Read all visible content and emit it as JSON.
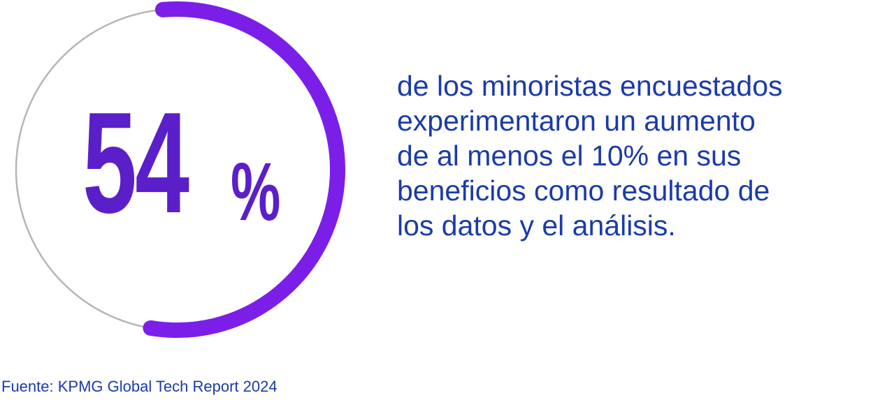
{
  "chart_data": {
    "type": "pie",
    "value_label": "54",
    "unit_label": "%",
    "values": [
      54,
      46
    ],
    "fill_percent": 54,
    "colors": {
      "accent": "#7b1fe8",
      "track": "#b5b5b5",
      "number": "#5b1fc9",
      "text": "#1b3ba8"
    },
    "title": ""
  },
  "description": {
    "lines": [
      "de los minoristas encuestados",
      "experimentaron un aumento",
      "de al menos el 10% en sus",
      "beneficios como resultado de",
      "los datos y el análisis."
    ]
  },
  "source": "Fuente: KPMG Global Tech Report 2024"
}
